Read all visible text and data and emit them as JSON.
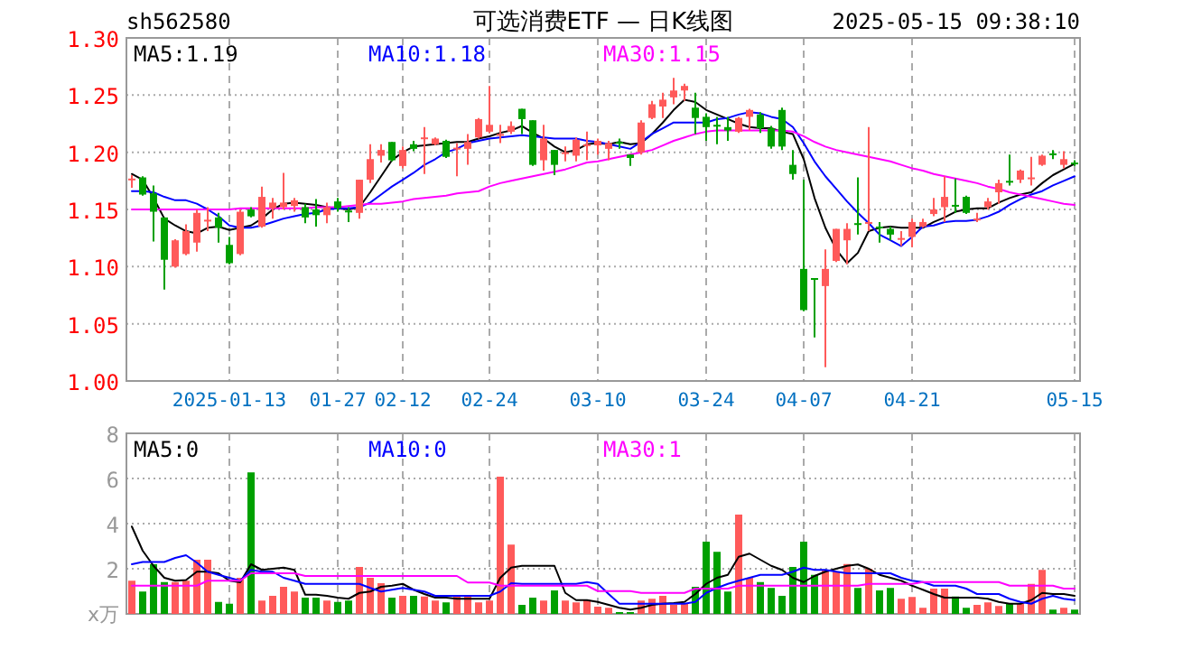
{
  "chart_data": [
    {
      "type": "candlestick",
      "title": "可选消费ETF — 日K线图",
      "subtitle": "sh562580",
      "annotations": [
        "2025-05-15 09:38:10"
      ],
      "categories": [
        null,
        null,
        null,
        null,
        null,
        null,
        null,
        null,
        null,
        "2025-01-13",
        null,
        null,
        null,
        null,
        null,
        null,
        null,
        null,
        null,
        "01-27",
        null,
        null,
        null,
        null,
        null,
        "02-12",
        null,
        null,
        null,
        null,
        null,
        null,
        null,
        "02-24",
        null,
        null,
        null,
        null,
        null,
        null,
        null,
        null,
        null,
        "03-10",
        null,
        null,
        null,
        null,
        null,
        null,
        null,
        null,
        null,
        "03-24",
        null,
        null,
        null,
        null,
        null,
        null,
        null,
        null,
        "04-07",
        null,
        null,
        null,
        null,
        null,
        null,
        null,
        null,
        null,
        "04-21",
        null,
        null,
        null,
        null,
        null,
        null,
        null,
        null,
        null,
        null,
        null,
        null,
        null,
        null,
        "05-15"
      ],
      "ohlc": [
        [
          1.176,
          1.18,
          1.169,
          1.177
        ],
        [
          1.178,
          1.179,
          1.162,
          1.163
        ],
        [
          1.164,
          1.171,
          1.122,
          1.148
        ],
        [
          1.143,
          1.143,
          1.08,
          1.106
        ],
        [
          1.1,
          1.124,
          1.099,
          1.123
        ],
        [
          1.111,
          1.137,
          1.11,
          1.131
        ],
        [
          1.121,
          1.15,
          1.113,
          1.147
        ],
        [
          1.14,
          1.152,
          1.131,
          1.141
        ],
        [
          1.143,
          1.147,
          1.121,
          1.134
        ],
        [
          1.119,
          1.126,
          1.102,
          1.103
        ],
        [
          1.111,
          1.15,
          1.11,
          1.148
        ],
        [
          1.15,
          1.152,
          1.143,
          1.144
        ],
        [
          1.135,
          1.17,
          1.134,
          1.161
        ],
        [
          1.151,
          1.16,
          1.142,
          1.156
        ],
        [
          1.152,
          1.182,
          1.15,
          1.156
        ],
        [
          1.153,
          1.16,
          1.148,
          1.158
        ],
        [
          1.152,
          1.155,
          1.138,
          1.143
        ],
        [
          1.15,
          1.159,
          1.135,
          1.145
        ],
        [
          1.145,
          1.156,
          1.138,
          1.152
        ],
        [
          1.157,
          1.16,
          1.148,
          1.151
        ],
        [
          1.149,
          1.152,
          1.139,
          1.148
        ],
        [
          1.147,
          1.176,
          1.142,
          1.176
        ],
        [
          1.176,
          1.207,
          1.173,
          1.194
        ],
        [
          1.197,
          1.207,
          1.191,
          1.202
        ],
        [
          1.209,
          1.209,
          1.192,
          1.193
        ],
        [
          1.188,
          1.205,
          1.186,
          1.202
        ],
        [
          1.207,
          1.21,
          1.201,
          1.203
        ],
        [
          1.212,
          1.222,
          1.181,
          1.213
        ],
        [
          1.207,
          1.213,
          1.206,
          1.212
        ],
        [
          1.21,
          1.211,
          1.195,
          1.196
        ],
        [
          1.203,
          1.208,
          1.179,
          1.204
        ],
        [
          1.203,
          1.216,
          1.189,
          1.209
        ],
        [
          1.213,
          1.23,
          1.212,
          1.229
        ],
        [
          1.218,
          1.258,
          1.217,
          1.224
        ],
        [
          1.215,
          1.224,
          1.208,
          1.216
        ],
        [
          1.218,
          1.227,
          1.216,
          1.223
        ],
        [
          1.238,
          1.238,
          1.216,
          1.229
        ],
        [
          1.228,
          1.228,
          1.188,
          1.189
        ],
        [
          1.193,
          1.224,
          1.184,
          1.212
        ],
        [
          1.202,
          1.202,
          1.18,
          1.189
        ],
        [
          1.199,
          1.205,
          1.192,
          1.2
        ],
        [
          1.197,
          1.213,
          1.192,
          1.211
        ],
        [
          1.206,
          1.218,
          1.193,
          1.207
        ],
        [
          1.206,
          1.212,
          1.198,
          1.21
        ],
        [
          1.203,
          1.21,
          1.193,
          1.208
        ],
        [
          1.209,
          1.212,
          1.203,
          1.208
        ],
        [
          1.198,
          1.198,
          1.188,
          1.195
        ],
        [
          1.2,
          1.228,
          1.198,
          1.226
        ],
        [
          1.23,
          1.245,
          1.229,
          1.242
        ],
        [
          1.24,
          1.252,
          1.23,
          1.246
        ],
        [
          1.248,
          1.265,
          1.242,
          1.254
        ],
        [
          1.254,
          1.26,
          1.245,
          1.258
        ],
        [
          1.239,
          1.252,
          1.216,
          1.23
        ],
        [
          1.231,
          1.234,
          1.21,
          1.222
        ],
        [
          1.224,
          1.231,
          1.207,
          1.223
        ],
        [
          1.222,
          1.231,
          1.21,
          1.219
        ],
        [
          1.218,
          1.231,
          1.217,
          1.23
        ],
        [
          1.231,
          1.238,
          1.219,
          1.237
        ],
        [
          1.233,
          1.235,
          1.217,
          1.221
        ],
        [
          1.221,
          1.223,
          1.203,
          1.205
        ],
        [
          1.237,
          1.239,
          1.202,
          1.205
        ],
        [
          1.189,
          1.202,
          1.176,
          1.181
        ],
        [
          1.098,
          1.176,
          1.061,
          1.062
        ],
        [
          1.09,
          1.09,
          1.038,
          1.089
        ],
        [
          1.083,
          1.115,
          1.012,
          1.098
        ],
        [
          1.105,
          1.133,
          1.104,
          1.133
        ],
        [
          1.123,
          1.138,
          1.102,
          1.133
        ],
        [
          1.138,
          1.178,
          1.128,
          1.137
        ],
        [
          1.139,
          1.222,
          1.131,
          1.139
        ],
        [
          1.135,
          1.139,
          1.121,
          1.134
        ],
        [
          1.133,
          1.135,
          1.123,
          1.128
        ],
        [
          1.124,
          1.131,
          1.118,
          1.125
        ],
        [
          1.126,
          1.142,
          1.117,
          1.139
        ],
        [
          1.135,
          1.142,
          1.134,
          1.139
        ],
        [
          1.146,
          1.16,
          1.144,
          1.15
        ],
        [
          1.152,
          1.179,
          1.139,
          1.161
        ],
        [
          1.154,
          1.177,
          1.147,
          1.153
        ],
        [
          1.161,
          1.162,
          1.146,
          1.147
        ],
        [
          1.141,
          1.147,
          1.139,
          1.142
        ],
        [
          1.152,
          1.16,
          1.15,
          1.157
        ],
        [
          1.165,
          1.176,
          1.155,
          1.173
        ],
        [
          1.175,
          1.198,
          1.171,
          1.174
        ],
        [
          1.176,
          1.185,
          1.173,
          1.184
        ],
        [
          1.177,
          1.196,
          1.171,
          1.178
        ],
        [
          1.189,
          1.198,
          1.188,
          1.197
        ],
        [
          1.199,
          1.202,
          1.194,
          1.198
        ],
        [
          1.189,
          1.201,
          1.186,
          1.194
        ],
        [
          1.191,
          1.193,
          1.188,
          1.19
        ]
      ],
      "colors": [
        "#ff5a5a",
        "#00a000",
        "#00a000",
        "#00a000",
        "#ff5a5a",
        "#ff5a5a",
        "#ff5a5a",
        "#ff5a5a",
        "#00a000",
        "#00a000",
        "#ff5a5a",
        "#00a000",
        "#ff5a5a",
        "#ff5a5a",
        "#ff5a5a",
        "#ff5a5a",
        "#00a000",
        "#00a000",
        "#ff5a5a",
        "#00a000",
        "#00a000",
        "#ff5a5a",
        "#ff5a5a",
        "#ff5a5a",
        "#00a000",
        "#ff5a5a",
        "#00a000",
        "#ff5a5a",
        "#ff5a5a",
        "#00a000",
        "#ff5a5a",
        "#ff5a5a",
        "#ff5a5a",
        "#ff5a5a",
        "#ff5a5a",
        "#ff5a5a",
        "#00a000",
        "#00a000",
        "#ff5a5a",
        "#00a000",
        "#ff5a5a",
        "#ff5a5a",
        "#ff5a5a",
        "#ff5a5a",
        "#ff5a5a",
        "#00a000",
        "#00a000",
        "#ff5a5a",
        "#ff5a5a",
        "#ff5a5a",
        "#ff5a5a",
        "#ff5a5a",
        "#00a000",
        "#00a000",
        "#00a000",
        "#00a000",
        "#ff5a5a",
        "#ff5a5a",
        "#00a000",
        "#00a000",
        "#00a000",
        "#00a000",
        "#00a000",
        "#00a000",
        "#ff5a5a",
        "#ff5a5a",
        "#ff5a5a",
        "#00a000",
        "#ff5a5a",
        "#00a000",
        "#00a000",
        "#ff5a5a",
        "#ff5a5a",
        "#ff5a5a",
        "#ff5a5a",
        "#ff5a5a",
        "#00a000",
        "#00a000",
        "#ff5a5a",
        "#ff5a5a",
        "#ff5a5a",
        "#00a000",
        "#ff5a5a",
        "#ff5a5a",
        "#ff5a5a",
        "#00a000",
        "#ff5a5a",
        "#00a000"
      ],
      "series": [
        {
          "type": "line",
          "name": "MA5:1.19",
          "color": "#000000",
          "values": [
            1.181,
            1.176,
            1.16,
            1.142,
            1.136,
            1.131,
            1.129,
            1.134,
            1.135,
            1.132,
            1.134,
            1.136,
            1.142,
            1.15,
            1.155,
            1.156,
            1.155,
            1.154,
            1.152,
            1.151,
            1.15,
            1.152,
            1.165,
            1.179,
            1.193,
            1.2,
            1.205,
            1.206,
            1.207,
            1.208,
            1.209,
            1.209,
            1.212,
            1.214,
            1.217,
            1.219,
            1.223,
            1.217,
            1.212,
            1.205,
            1.2,
            1.202,
            1.207,
            1.208,
            1.207,
            1.209,
            1.207,
            1.208,
            1.216,
            1.226,
            1.237,
            1.246,
            1.244,
            1.237,
            1.233,
            1.229,
            1.225,
            1.222,
            1.221,
            1.221,
            1.218,
            1.216,
            1.194,
            1.16,
            1.134,
            1.115,
            1.103,
            1.112,
            1.131,
            1.134,
            1.135,
            1.134,
            1.134,
            1.134,
            1.139,
            1.143,
            1.148,
            1.15,
            1.151,
            1.151,
            1.156,
            1.16,
            1.163,
            1.165,
            1.173,
            1.18,
            1.185,
            1.19
          ]
        },
        {
          "type": "line",
          "name": "MA10:1.18",
          "color": "#0000ff",
          "values": [
            1.166,
            1.166,
            1.165,
            1.161,
            1.158,
            1.158,
            1.155,
            1.15,
            1.144,
            1.136,
            1.134,
            1.134,
            1.136,
            1.139,
            1.142,
            1.144,
            1.146,
            1.147,
            1.15,
            1.151,
            1.151,
            1.152,
            1.156,
            1.163,
            1.17,
            1.176,
            1.182,
            1.189,
            1.194,
            1.2,
            1.203,
            1.208,
            1.21,
            1.212,
            1.213,
            1.214,
            1.215,
            1.214,
            1.213,
            1.212,
            1.212,
            1.212,
            1.21,
            1.209,
            1.207,
            1.205,
            1.203,
            1.209,
            1.216,
            1.221,
            1.226,
            1.226,
            1.226,
            1.226,
            1.229,
            1.23,
            1.233,
            1.235,
            1.234,
            1.231,
            1.229,
            1.222,
            1.208,
            1.192,
            1.179,
            1.168,
            1.157,
            1.147,
            1.138,
            1.128,
            1.123,
            1.118,
            1.126,
            1.135,
            1.136,
            1.139,
            1.14,
            1.14,
            1.141,
            1.144,
            1.148,
            1.154,
            1.159,
            1.163,
            1.166,
            1.171,
            1.175,
            1.179
          ]
        },
        {
          "type": "line",
          "name": "MA30:1.15",
          "color": "#ff00ff",
          "values": [
            1.15,
            1.15,
            1.15,
            1.15,
            1.15,
            1.15,
            1.15,
            1.15,
            1.15,
            1.15,
            1.151,
            1.151,
            1.151,
            1.151,
            1.151,
            1.151,
            1.151,
            1.152,
            1.152,
            1.152,
            1.153,
            1.154,
            1.155,
            1.155,
            1.156,
            1.157,
            1.159,
            1.16,
            1.161,
            1.162,
            1.164,
            1.165,
            1.166,
            1.17,
            1.173,
            1.175,
            1.177,
            1.179,
            1.181,
            1.183,
            1.185,
            1.188,
            1.191,
            1.192,
            1.194,
            1.196,
            1.198,
            1.2,
            1.202,
            1.206,
            1.21,
            1.213,
            1.216,
            1.218,
            1.219,
            1.219,
            1.219,
            1.219,
            1.219,
            1.219,
            1.219,
            1.218,
            1.214,
            1.209,
            1.205,
            1.202,
            1.2,
            1.198,
            1.196,
            1.194,
            1.192,
            1.189,
            1.186,
            1.184,
            1.181,
            1.179,
            1.177,
            1.175,
            1.173,
            1.17,
            1.168,
            1.165,
            1.163,
            1.161,
            1.159,
            1.157,
            1.155,
            1.154
          ]
        }
      ],
      "ylim": [
        1,
        1.3
      ],
      "yticks": [
        {
          "value": 1,
          "label": "1.00"
        },
        1.05,
        {
          "value": 1.1,
          "label": "1.10"
        },
        1.15,
        {
          "value": 1.2,
          "label": "1.20"
        },
        1.25,
        {
          "value": 1.3,
          "label": "1.30"
        }
      ],
      "grid": true,
      "legend": "top"
    },
    {
      "type": "bar",
      "ylabel": "x万",
      "tick_labels": "y",
      "categories": [
        null,
        null,
        null,
        null,
        null,
        null,
        null,
        null,
        null,
        null,
        null,
        null,
        null,
        null,
        null,
        null,
        null,
        null,
        null,
        null,
        null,
        null,
        null,
        null,
        null,
        null,
        null,
        null,
        null,
        null,
        null,
        null,
        null,
        null,
        null,
        null,
        null,
        null,
        null,
        null,
        null,
        null,
        null,
        null,
        null,
        null,
        null,
        null,
        null,
        null,
        null,
        null,
        null,
        null,
        null,
        null,
        null,
        null,
        null,
        null,
        null,
        null,
        null,
        null,
        null,
        null,
        null,
        null,
        null,
        null,
        null,
        null,
        null,
        null,
        null,
        null,
        null,
        null,
        null,
        null,
        null,
        null,
        null,
        null,
        null,
        null,
        null,
        null
      ],
      "series": [
        {
          "type": "bar",
          "colors": [
            "#ff5a5a",
            "#00a000",
            "#00a000",
            "#00a000",
            "#ff5a5a",
            "#ff5a5a",
            "#ff5a5a",
            "#ff5a5a",
            "#00a000",
            "#00a000",
            "#ff5a5a",
            "#00a000",
            "#ff5a5a",
            "#ff5a5a",
            "#ff5a5a",
            "#ff5a5a",
            "#00a000",
            "#00a000",
            "#ff5a5a",
            "#00a000",
            "#00a000",
            "#ff5a5a",
            "#ff5a5a",
            "#ff5a5a",
            "#00a000",
            "#ff5a5a",
            "#00a000",
            "#ff5a5a",
            "#ff5a5a",
            "#00a000",
            "#ff5a5a",
            "#ff5a5a",
            "#ff5a5a",
            "#ff5a5a",
            "#ff5a5a",
            "#ff5a5a",
            "#00a000",
            "#00a000",
            "#ff5a5a",
            "#00a000",
            "#ff5a5a",
            "#ff5a5a",
            "#ff5a5a",
            "#ff5a5a",
            "#ff5a5a",
            "#00a000",
            "#00a000",
            "#ff5a5a",
            "#ff5a5a",
            "#ff5a5a",
            "#ff5a5a",
            "#ff5a5a",
            "#00a000",
            "#00a000",
            "#00a000",
            "#00a000",
            "#ff5a5a",
            "#ff5a5a",
            "#00a000",
            "#00a000",
            "#00a000",
            "#00a000",
            "#00a000",
            "#00a000",
            "#ff5a5a",
            "#ff5a5a",
            "#ff5a5a",
            "#00a000",
            "#ff5a5a",
            "#00a000",
            "#00a000",
            "#ff5a5a",
            "#ff5a5a",
            "#ff5a5a",
            "#ff5a5a",
            "#ff5a5a",
            "#00a000",
            "#00a000",
            "#ff5a5a",
            "#ff5a5a",
            "#ff5a5a",
            "#00a000",
            "#ff5a5a",
            "#ff5a5a",
            "#ff5a5a",
            "#00a000",
            "#ff5a5a",
            "#00a000"
          ],
          "values": [
            1.47,
            0.99,
            2.2,
            1.41,
            1.41,
            1.47,
            2.4,
            2.4,
            0.53,
            0.45,
            1.6,
            6.27,
            0.59,
            0.8,
            1.2,
            0.99,
            0.72,
            0.72,
            0.59,
            0.53,
            0.59,
            2.08,
            1.6,
            1.36,
            0.72,
            0.8,
            0.8,
            0.77,
            0.59,
            0.51,
            0.77,
            0.77,
            0.51,
            0.59,
            6.08,
            3.07,
            0.4,
            0.72,
            0.59,
            1.04,
            0.59,
            0.51,
            0.61,
            0.32,
            0.27,
            0.08,
            0.08,
            0.59,
            0.67,
            0.8,
            0.4,
            0.45,
            1.2,
            3.2,
            2.75,
            0.99,
            4.4,
            1.6,
            1.41,
            1.15,
            0.8,
            2.08,
            3.2,
            1.73,
            1.95,
            1.87,
            2.21,
            1.15,
            2.0,
            1.04,
            1.15,
            0.67,
            0.75,
            0.27,
            1.12,
            1.12,
            0.77,
            0.27,
            0.4,
            0.51,
            0.35,
            0.45,
            0.45,
            1.33,
            1.95,
            0.19,
            0.27,
            0.19
          ]
        },
        {
          "type": "line",
          "name": "MA5:0",
          "color": "#000000",
          "values": [
            3.87,
            2.8,
            2.13,
            1.6,
            1.47,
            1.5,
            1.87,
            1.87,
            1.8,
            1.47,
            1.4,
            2.2,
            1.95,
            2.0,
            2.05,
            1.95,
            0.85,
            0.85,
            0.8,
            0.72,
            0.67,
            0.93,
            0.99,
            1.2,
            1.25,
            1.33,
            1.07,
            0.88,
            0.72,
            0.72,
            0.67,
            0.67,
            0.67,
            0.67,
            1.6,
            2.05,
            2.13,
            2.13,
            2.13,
            2.13,
            0.93,
            0.61,
            0.61,
            0.53,
            0.4,
            0.27,
            0.19,
            0.27,
            0.4,
            0.45,
            0.48,
            0.53,
            0.88,
            1.33,
            1.6,
            1.73,
            2.53,
            2.67,
            2.4,
            2.13,
            1.95,
            1.6,
            1.41,
            1.68,
            1.87,
            2.0,
            2.13,
            2.19,
            2.0,
            1.73,
            1.6,
            1.47,
            1.25,
            1.07,
            0.88,
            0.72,
            0.72,
            0.72,
            0.72,
            0.67,
            0.53,
            0.45,
            0.45,
            0.61,
            0.93,
            0.88,
            0.88,
            0.8
          ]
        },
        {
          "type": "line",
          "name": "MA10:0",
          "color": "#0000ff",
          "values": [
            2.2,
            2.3,
            2.3,
            2.3,
            2.48,
            2.6,
            2.27,
            1.87,
            1.73,
            1.6,
            1.47,
            1.95,
            1.87,
            1.87,
            1.6,
            1.47,
            1.33,
            1.33,
            1.33,
            1.33,
            1.33,
            1.33,
            1.15,
            0.99,
            1.07,
            1.15,
            1.07,
            0.99,
            0.8,
            0.8,
            0.8,
            0.8,
            0.8,
            0.8,
            0.99,
            1.36,
            1.33,
            1.33,
            1.33,
            1.33,
            1.33,
            1.33,
            1.41,
            1.33,
            0.88,
            0.45,
            0.45,
            0.45,
            0.45,
            0.45,
            0.45,
            0.45,
            0.53,
            0.93,
            1.15,
            1.33,
            1.47,
            1.6,
            1.73,
            1.73,
            1.73,
            1.87,
            2.05,
            1.95,
            1.95,
            1.87,
            1.8,
            1.8,
            1.8,
            1.8,
            1.8,
            1.6,
            1.47,
            1.41,
            1.25,
            1.25,
            1.25,
            1.12,
            0.88,
            0.88,
            0.88,
            0.67,
            0.53,
            0.45,
            0.67,
            0.8,
            0.67,
            0.61
          ]
        },
        {
          "type": "line",
          "name": "MA30:1",
          "color": "#ff00ff",
          "values": [
            1.25,
            1.25,
            1.25,
            1.25,
            1.25,
            1.25,
            1.25,
            1.47,
            1.47,
            1.47,
            1.47,
            1.8,
            1.8,
            1.8,
            1.8,
            1.8,
            1.68,
            1.68,
            1.68,
            1.68,
            1.68,
            1.68,
            1.68,
            1.68,
            1.68,
            1.68,
            1.68,
            1.68,
            1.68,
            1.68,
            1.68,
            1.39,
            1.39,
            1.39,
            1.25,
            1.25,
            1.25,
            1.25,
            1.25,
            1.25,
            1.25,
            1.25,
            1.25,
            1.01,
            1.01,
            1.01,
            1.01,
            0.93,
            0.93,
            0.93,
            0.93,
            0.93,
            1.12,
            1.12,
            1.12,
            1.12,
            1.25,
            1.25,
            1.25,
            1.25,
            1.25,
            1.25,
            1.25,
            1.25,
            1.25,
            1.25,
            1.25,
            1.25,
            1.33,
            1.33,
            1.33,
            1.33,
            1.33,
            1.41,
            1.41,
            1.41,
            1.41,
            1.41,
            1.41,
            1.41,
            1.41,
            1.25,
            1.25,
            1.25,
            1.25,
            1.25,
            1.12,
            1.12
          ]
        }
      ],
      "ylim": [
        0,
        8
      ],
      "yticks": [
        2,
        4,
        6,
        8
      ],
      "grid": true,
      "legend": "top"
    }
  ]
}
